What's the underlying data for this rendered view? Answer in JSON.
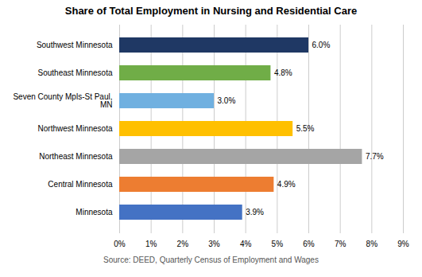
{
  "chart_data": {
    "type": "bar",
    "orientation": "horizontal",
    "title": "Share of Total Employment in Nursing and Residential Care",
    "categories": [
      "Minnesota",
      "Central Minnesota",
      "Northeast Minnesota",
      "Northwest Minnesota",
      "Seven County Mpls-St Paul,\nMN",
      "Southeast Minnesota",
      "Southwest Minnesota"
    ],
    "values": [
      3.9,
      4.9,
      7.7,
      5.5,
      3.0,
      4.8,
      6.0
    ],
    "value_labels": [
      "3.9%",
      "4.9%",
      "7.7%",
      "5.5%",
      "3.0%",
      "4.8%",
      "6.0%"
    ],
    "data_labels": true,
    "colors": [
      "#4472C4",
      "#ED7D31",
      "#A5A5A5",
      "#FFC000",
      "#70B0E0",
      "#70AD47",
      "#1F3864"
    ],
    "xlim": [
      0,
      9
    ],
    "xticks": [
      {
        "value": 0,
        "label": "0%"
      },
      {
        "value": 1,
        "label": "1%"
      },
      {
        "value": 2,
        "label": "2%"
      },
      {
        "value": 3,
        "label": "3%"
      },
      {
        "value": 4,
        "label": "4%"
      },
      {
        "value": 5,
        "label": "5%"
      },
      {
        "value": 6,
        "label": "6%"
      },
      {
        "value": 7,
        "label": "7%"
      },
      {
        "value": 8,
        "label": "8%"
      },
      {
        "value": 9,
        "label": "9%"
      }
    ],
    "grid": true,
    "caption": "Source: DEED, Quarterly Census of Employment and Wages"
  }
}
